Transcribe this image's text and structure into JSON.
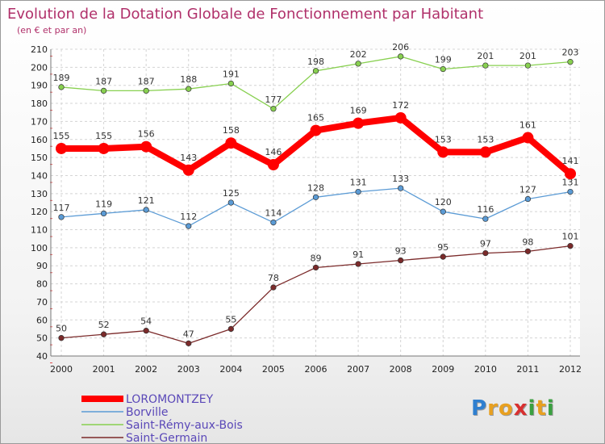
{
  "chart_data": {
    "type": "line",
    "title": "Evolution de la Dotation Globale de Fonctionnement par Habitant",
    "subtitle": "(en € et par an)",
    "x": [
      "2000",
      "2001",
      "2002",
      "2003",
      "2004",
      "2005",
      "2006",
      "2007",
      "2008",
      "2009",
      "2010",
      "2011",
      "2012"
    ],
    "yticks": [
      "40",
      "50",
      "60",
      "70",
      "80",
      "90",
      "100",
      "110",
      "120",
      "130",
      "140",
      "150",
      "160",
      "170",
      "180",
      "190",
      "200",
      "210"
    ],
    "ylim": [
      40,
      210
    ],
    "grid": true,
    "legend_position": "bottom-left",
    "series": [
      {
        "name": "LOROMONTZEY",
        "color": "#ff0000",
        "emphasis": true,
        "values": [
          155,
          155,
          156,
          143,
          158,
          146,
          165,
          169,
          172,
          153,
          153,
          161,
          141
        ],
        "labels": [
          "155",
          "155",
          "156",
          "143",
          "158",
          "146",
          "165",
          "169",
          "172",
          "153",
          "153",
          "161",
          "141"
        ]
      },
      {
        "name": "Borville",
        "color": "#5b9bd5",
        "emphasis": false,
        "values": [
          117,
          119,
          121,
          112,
          125,
          114,
          128,
          131,
          133,
          120,
          116,
          127,
          131
        ],
        "labels": [
          "117",
          "119",
          "121",
          "112",
          "125",
          "114",
          "128",
          "131",
          "133",
          "120",
          "116",
          "127",
          "131"
        ]
      },
      {
        "name": "Saint-Rémy-aux-Bois",
        "color": "#88d050",
        "emphasis": false,
        "values": [
          189,
          187,
          187,
          188,
          191,
          177,
          198,
          202,
          206,
          199,
          201,
          201,
          203
        ],
        "labels": [
          "189",
          "187",
          "187",
          "188",
          "191",
          "177",
          "198",
          "202",
          "206",
          "199",
          "201",
          "201",
          "203"
        ]
      },
      {
        "name": "Saint-Germain",
        "color": "#7b2a2a",
        "emphasis": false,
        "values": [
          50,
          52,
          54,
          47,
          55,
          78,
          89,
          91,
          93,
          95,
          97,
          98,
          101
        ],
        "labels": [
          "50",
          "52",
          "54",
          "47",
          "55",
          "78",
          "89",
          "91",
          "93",
          "95",
          "97",
          "98",
          "101"
        ]
      }
    ]
  },
  "logo": {
    "letters": [
      "P",
      "r",
      "o",
      "x",
      "i",
      "t",
      "i"
    ],
    "colors": [
      "#2f7fd0",
      "#e8a020",
      "#e8a020",
      "#d83030",
      "#3aa040",
      "#e8a020",
      "#3aa040"
    ]
  }
}
